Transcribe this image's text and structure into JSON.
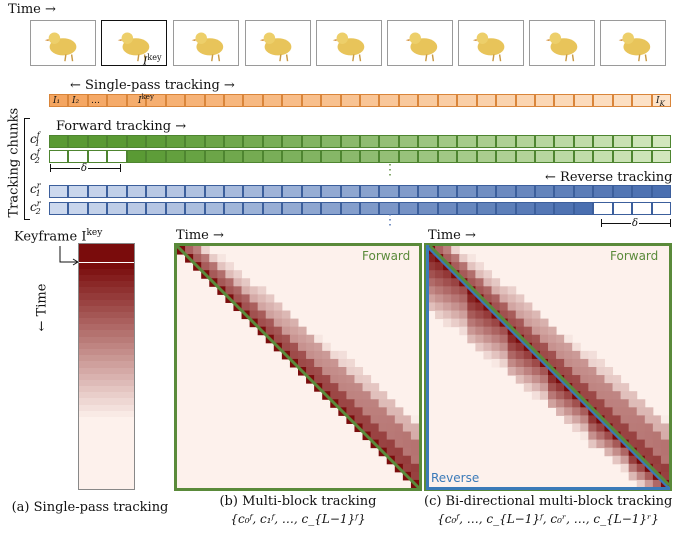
{
  "time_label": "Time →",
  "frames": [
    "frame-1",
    "frame-2",
    "frame-3",
    "frame-4",
    "frame-5",
    "frame-6",
    "frame-7",
    "frame-8",
    "frame-9"
  ],
  "keyframe_frame_label": "I",
  "keyframe_frame_sup": "key",
  "single_pass": {
    "title": "← Single-pass tracking →",
    "cells": [
      "I₁",
      "I₂",
      "…"
    ],
    "key_cell": "I",
    "key_cell_sup": "key",
    "last_cell": "I",
    "last_cell_sub": "K"
  },
  "tracking_chunks_label": "Tracking chunks",
  "forward": {
    "title": "Forward tracking →",
    "row1": {
      "base": "c",
      "sup": "f",
      "sub": "1"
    },
    "row2": {
      "base": "c",
      "sup": "f",
      "sub": "2"
    },
    "delta": "δ"
  },
  "dots": "⋮",
  "reverse": {
    "title": "← Reverse tracking",
    "row1": {
      "base": "c",
      "sup": "r",
      "sub": "1"
    },
    "row2": {
      "base": "c",
      "sup": "r",
      "sub": "2"
    },
    "delta": "δ"
  },
  "panel_a": {
    "keyframe_label": "Keyframe I",
    "keyframe_sup": "key",
    "time_label": "← Time",
    "caption": "(a) Single-pass tracking"
  },
  "panel_b": {
    "time_label": "Time →",
    "forward_label": "Forward",
    "caption": "(b) Multi-block tracking",
    "formula": "{c₀ᶠ, c₁ᶠ, …, c_{L−1}ᶠ}"
  },
  "panel_c": {
    "time_label": "Time →",
    "forward_label": "Forward",
    "reverse_label": "Reverse",
    "caption": "(c) Bi-directional multi-block tracking",
    "formula": "{c₀ᶠ, …, c_{L−1}ᶠ, c₀ʳ, …, c_{L−1}ʳ}"
  },
  "colors": {
    "orange": "#f4a25a",
    "green_dark": "#5a9a34",
    "green_light": "#d6eac2",
    "blue_dark": "#4a6fb0",
    "blue_light": "#cdd9ee",
    "red_dark": "#7a0c0c",
    "red_light": "#fdf1ec",
    "border_green": "#5a8a3a",
    "border_blue": "#3b7ab8"
  }
}
